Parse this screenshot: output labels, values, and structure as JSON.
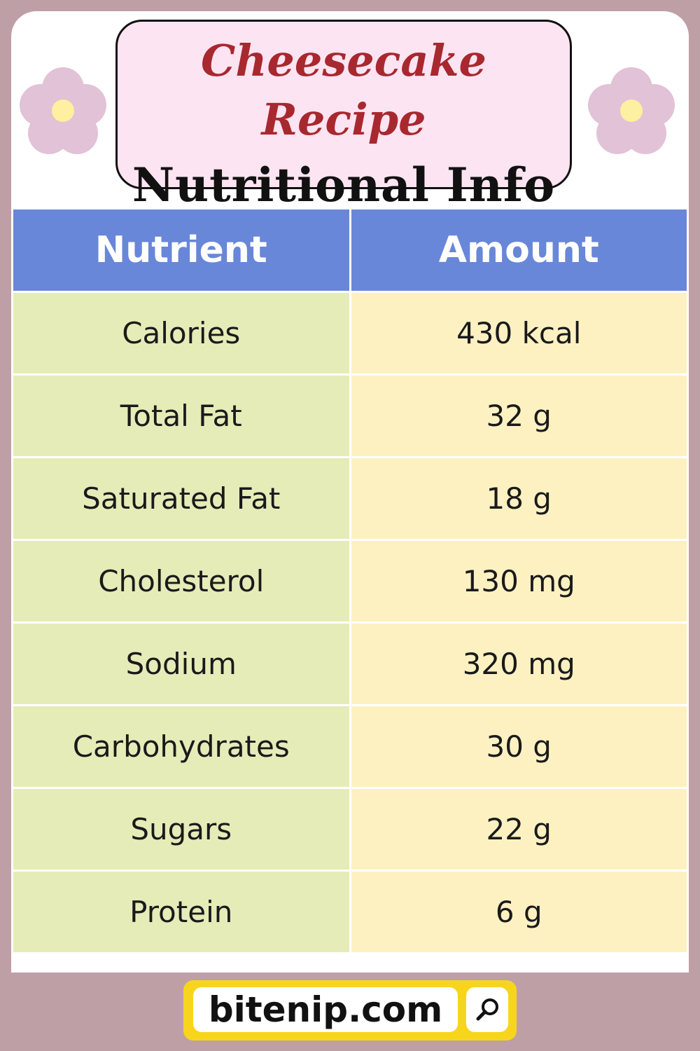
{
  "title": {
    "line1": "Cheesecake Recipe",
    "line2": "Nutritional Info"
  },
  "table": {
    "headers": [
      "Nutrient",
      "Amount"
    ],
    "rows": [
      {
        "nutrient": "Calories",
        "amount": "430 kcal"
      },
      {
        "nutrient": "Total Fat",
        "amount": "32 g"
      },
      {
        "nutrient": "Saturated Fat",
        "amount": "18 g"
      },
      {
        "nutrient": "Cholesterol",
        "amount": "130 mg"
      },
      {
        "nutrient": "Sodium",
        "amount": "320 mg"
      },
      {
        "nutrient": "Carbohydrates",
        "amount": "30 g"
      },
      {
        "nutrient": "Sugars",
        "amount": "22 g"
      },
      {
        "nutrient": "Protein",
        "amount": "6 g"
      }
    ]
  },
  "footer": {
    "site": "bitenip.com",
    "icon": "search-icon"
  },
  "colors": {
    "background": "#bf9fa6",
    "title_red": "#a8282f",
    "header_blue": "#6987d8",
    "nutrient_col": "#e6ecb8",
    "amount_col": "#fdf1c2",
    "footer_yellow": "#f7d51d",
    "flower_petal": "#e2c2d7",
    "flower_center": "#fdf0a0"
  }
}
